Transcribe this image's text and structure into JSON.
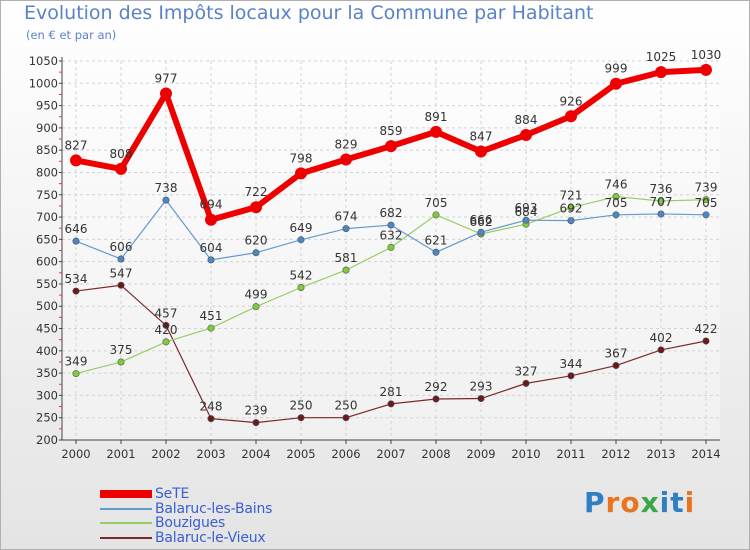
{
  "chart_data": {
    "type": "line",
    "title": "Evolution des Impôts locaux pour la Commune par Habitant",
    "subtitle": "(en € et par an)",
    "xlabel": "",
    "ylabel": "",
    "x": [
      "2000",
      "2001",
      "2002",
      "2003",
      "2004",
      "2005",
      "2006",
      "2007",
      "2008",
      "2009",
      "2010",
      "2011",
      "2012",
      "2013",
      "2014"
    ],
    "ylim": [
      200,
      1050
    ],
    "yticks": [
      200,
      250,
      300,
      350,
      400,
      450,
      500,
      550,
      600,
      650,
      700,
      750,
      800,
      850,
      900,
      950,
      1000,
      1050
    ],
    "grid": true,
    "legend_position": "bottom-left",
    "series": [
      {
        "name": "SeTE",
        "color": "#ee0000",
        "values": [
          827,
          808,
          977,
          694,
          722,
          798,
          829,
          859,
          891,
          847,
          884,
          926,
          999,
          1025,
          1030
        ]
      },
      {
        "name": "Balaruc-les-Bains",
        "color": "#6699cc",
        "values": [
          646,
          606,
          738,
          604,
          620,
          649,
          674,
          682,
          621,
          666,
          693,
          692,
          705,
          707,
          705
        ]
      },
      {
        "name": "Bouzigues",
        "color": "#99cc66",
        "values": [
          349,
          375,
          420,
          451,
          499,
          542,
          581,
          632,
          705,
          662,
          684,
          721,
          746,
          736,
          739
        ]
      },
      {
        "name": "Balaruc-le-Vieux",
        "color": "#7a2a2a",
        "values": [
          534,
          547,
          457,
          248,
          239,
          250,
          250,
          281,
          292,
          293,
          327,
          344,
          367,
          402,
          422
        ]
      }
    ]
  },
  "logo": {
    "text": "Proxiti",
    "letters": [
      "P",
      "r",
      "o",
      "x",
      "i",
      "t",
      "i"
    ],
    "colors": [
      "#2e7fc4",
      "#e8741e",
      "#e8741e",
      "#3aa64a",
      "#2e7fc4",
      "#2e7fc4",
      "#e8741e"
    ]
  }
}
